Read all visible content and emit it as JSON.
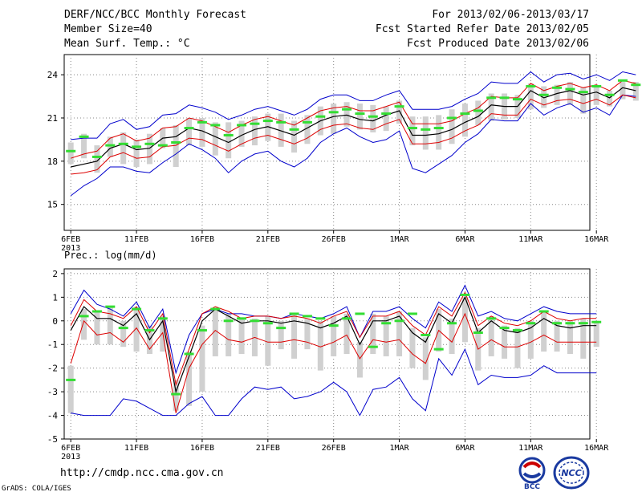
{
  "header": {
    "left": [
      "DERF/NCC/BCC Monthly Forecast",
      "Member Size=40",
      "Mean Surf. Temp.: °C"
    ],
    "right": [
      "For 2013/02/06-2013/03/17",
      "Fcst Started Refer Date 2013/02/05",
      "Fcst Produced Date 2013/02/06"
    ]
  },
  "prec_label": "Prec.: log(mm/d)",
  "footer": {
    "url": "http://cmdp.ncc.cma.gov.cn",
    "grads": "GrADS: COLA/IGES"
  },
  "logos": {
    "bcc": "BCC",
    "ncc": "NCC"
  },
  "colors": {
    "mean": "#000000",
    "spread": "#dd0000",
    "extreme": "#0000cc",
    "box": "#d0d0d0",
    "median": "#33dd33",
    "grid": "#888888"
  },
  "chart_data": [
    {
      "type": "line",
      "title": "Mean Surf. Temp.: °C",
      "ylim": [
        13.2,
        25.4
      ],
      "yticks": [
        15,
        18,
        21,
        24
      ],
      "x_tick_labels": [
        "6FEB",
        "11FEB",
        "16FEB",
        "21FEB",
        "26FEB",
        "1MAR",
        "6MAR",
        "11MAR",
        "16MAR"
      ],
      "x_tick_days": [
        1,
        6,
        11,
        16,
        21,
        26,
        31,
        36,
        41
      ],
      "year_label": "2013",
      "days": 40,
      "series": [
        {
          "name": "ensemble mean",
          "values": [
            17.6,
            17.8,
            18.0,
            18.9,
            19.2,
            18.8,
            18.9,
            19.6,
            19.7,
            20.3,
            20.1,
            19.7,
            19.3,
            19.8,
            20.2,
            20.4,
            20.1,
            19.8,
            20.3,
            20.8,
            21.1,
            21.2,
            20.9,
            20.8,
            21.2,
            21.5,
            19.8,
            19.8,
            19.9,
            20.2,
            20.7,
            21.1,
            21.9,
            21.8,
            21.8,
            22.9,
            22.4,
            22.7,
            22.9,
            22.6,
            22.8,
            22.4,
            23.1,
            22.9
          ]
        },
        {
          "name": "mean + std",
          "values": [
            18.2,
            18.5,
            18.7,
            19.6,
            19.9,
            19.4,
            19.6,
            20.3,
            20.4,
            21.0,
            20.8,
            20.4,
            20.0,
            20.5,
            20.9,
            21.1,
            20.8,
            20.5,
            21.0,
            21.5,
            21.7,
            21.8,
            21.5,
            21.5,
            21.8,
            22.1,
            20.6,
            20.6,
            20.6,
            20.8,
            21.3,
            21.7,
            22.5,
            22.4,
            22.4,
            23.4,
            22.9,
            23.2,
            23.4,
            23.1,
            23.3,
            22.9,
            23.6,
            23.4
          ]
        },
        {
          "name": "mean - std",
          "values": [
            17.1,
            17.2,
            17.4,
            18.3,
            18.6,
            18.2,
            18.3,
            19.0,
            19.1,
            19.6,
            19.5,
            19.1,
            18.7,
            19.2,
            19.6,
            19.8,
            19.5,
            19.2,
            19.6,
            20.2,
            20.5,
            20.6,
            20.3,
            20.2,
            20.6,
            20.9,
            19.2,
            19.2,
            19.3,
            19.6,
            20.1,
            20.5,
            21.3,
            21.2,
            21.2,
            22.3,
            21.9,
            22.2,
            22.3,
            22.0,
            22.3,
            21.9,
            22.6,
            22.4
          ]
        },
        {
          "name": "maximum",
          "values": [
            19.5,
            19.6,
            19.6,
            20.6,
            20.9,
            20.2,
            20.4,
            21.2,
            21.3,
            21.9,
            21.7,
            21.4,
            20.9,
            21.2,
            21.6,
            21.8,
            21.5,
            21.2,
            21.6,
            22.3,
            22.6,
            22.6,
            22.2,
            22.2,
            22.6,
            22.9,
            21.6,
            21.6,
            21.6,
            21.8,
            22.3,
            22.7,
            23.5,
            23.4,
            23.4,
            24.2,
            23.5,
            24.0,
            24.1,
            23.7,
            24.0,
            23.6,
            24.2,
            24.0
          ]
        },
        {
          "name": "minimum",
          "values": [
            15.6,
            16.3,
            16.8,
            17.6,
            17.6,
            17.3,
            17.2,
            17.9,
            18.5,
            19.2,
            18.8,
            18.2,
            17.2,
            18.0,
            18.5,
            18.7,
            18.0,
            17.6,
            18.2,
            19.3,
            19.9,
            20.3,
            19.7,
            19.3,
            19.5,
            20.1,
            17.5,
            17.2,
            17.8,
            18.4,
            19.3,
            19.9,
            20.9,
            20.8,
            20.8,
            22.0,
            21.2,
            21.7,
            22.0,
            21.4,
            21.7,
            21.2,
            22.6,
            22.5
          ]
        },
        {
          "name": "median",
          "values": [
            18.7,
            19.7,
            18.3,
            19.1,
            19.2,
            19.0,
            19.2,
            19.1,
            19.3,
            20.3,
            20.7,
            20.5,
            19.8,
            20.5,
            20.6,
            20.8,
            20.7,
            20.2,
            20.7,
            21.1,
            21.4,
            21.6,
            21.3,
            21.1,
            21.3,
            21.8,
            20.3,
            20.2,
            20.3,
            21.0,
            21.3,
            21.5,
            22.4,
            22.4,
            22.3,
            23.2,
            22.6,
            23.1,
            23.0,
            22.8,
            23.2,
            22.6,
            23.6,
            23.3
          ]
        },
        {
          "name": "box top",
          "values": [
            19.3,
            19.9,
            19.1,
            19.7,
            20.0,
            19.5,
            19.9,
            20.3,
            20.5,
            21.0,
            21.0,
            20.7,
            20.7,
            20.8,
            21.1,
            21.3,
            21.3,
            20.8,
            21.2,
            21.8,
            22.0,
            22.1,
            22.0,
            21.9,
            21.8,
            22.2,
            21.1,
            21.1,
            21.2,
            21.6,
            22.0,
            22.2,
            22.7,
            22.7,
            22.6,
            23.4,
            23.2,
            23.3,
            23.5,
            23.1,
            23.2,
            22.9,
            23.5,
            23.5
          ]
        },
        {
          "name": "box bottom",
          "values": [
            17.8,
            18.2,
            17.2,
            18.3,
            17.8,
            17.6,
            17.8,
            18.9,
            17.6,
            19.1,
            19.0,
            18.4,
            18.2,
            19.0,
            19.1,
            19.4,
            19.0,
            18.6,
            19.2,
            19.8,
            19.9,
            20.4,
            20.2,
            20.0,
            20.1,
            20.6,
            19.1,
            18.8,
            18.8,
            19.2,
            19.7,
            20.5,
            20.8,
            20.9,
            21.0,
            21.6,
            21.7,
            21.9,
            21.9,
            21.3,
            21.9,
            21.8,
            22.3,
            22.2
          ]
        }
      ]
    },
    {
      "type": "line",
      "title": "Prec.: log(mm/d)",
      "ylim": [
        -5,
        2.2
      ],
      "yticks": [
        -5,
        -4,
        -3,
        -2,
        -1,
        0,
        1,
        2
      ],
      "x_tick_labels": [
        "6FEB",
        "11FEB",
        "16FEB",
        "21FEB",
        "26FEB",
        "1MAR",
        "6MAR",
        "11MAR",
        "16MAR"
      ],
      "x_tick_days": [
        1,
        6,
        11,
        16,
        21,
        26,
        31,
        36,
        41
      ],
      "year_label": "2013",
      "days": 40,
      "series": [
        {
          "name": "ensemble mean",
          "values": [
            -0.4,
            0.6,
            0.1,
            0.1,
            -0.2,
            0.3,
            -0.8,
            0.0,
            -3.0,
            -1.5,
            0.0,
            0.5,
            0.2,
            -0.1,
            0.0,
            0.0,
            -0.1,
            0.0,
            -0.1,
            -0.3,
            -0.1,
            0.2,
            -1.0,
            0.0,
            0.0,
            0.2,
            -0.5,
            -0.9,
            0.3,
            -0.1,
            1.0,
            -0.5,
            0.0,
            -0.4,
            -0.5,
            -0.3,
            0.1,
            -0.2,
            -0.3,
            -0.2,
            -0.2
          ]
        },
        {
          "name": "mean + std",
          "values": [
            -0.2,
            0.9,
            0.4,
            0.3,
            0.1,
            0.6,
            -0.5,
            0.3,
            -2.7,
            -1.2,
            0.3,
            0.6,
            0.4,
            0.1,
            0.2,
            0.2,
            0.1,
            0.2,
            0.1,
            -0.1,
            0.2,
            0.4,
            -0.7,
            0.2,
            0.2,
            0.4,
            -0.2,
            -0.6,
            0.6,
            0.2,
            1.2,
            -0.2,
            0.2,
            -0.1,
            -0.2,
            0.0,
            0.4,
            0.1,
            0.0,
            0.1,
            0.1
          ]
        },
        {
          "name": "mean - std",
          "values": [
            -1.8,
            0.0,
            -0.6,
            -0.5,
            -0.9,
            -0.3,
            -1.2,
            -0.5,
            -3.9,
            -2.0,
            -1.0,
            -0.4,
            -0.8,
            -0.9,
            -0.7,
            -0.9,
            -0.9,
            -0.8,
            -0.9,
            -1.1,
            -0.9,
            -0.6,
            -1.6,
            -0.8,
            -0.9,
            -0.8,
            -1.4,
            -1.8,
            -0.4,
            -0.9,
            0.3,
            -1.2,
            -0.8,
            -1.1,
            -1.1,
            -0.9,
            -0.6,
            -0.9,
            -0.9,
            -0.9,
            -0.9
          ]
        },
        {
          "name": "maximum",
          "values": [
            0.3,
            1.3,
            0.7,
            0.5,
            0.2,
            0.8,
            -0.3,
            0.5,
            -2.2,
            -0.6,
            0.3,
            0.5,
            0.3,
            0.3,
            0.2,
            0.2,
            0.1,
            0.3,
            0.2,
            0.1,
            0.3,
            0.6,
            -0.7,
            0.4,
            0.4,
            0.6,
            0.1,
            -0.3,
            0.8,
            0.4,
            1.5,
            0.2,
            0.4,
            0.1,
            0.0,
            0.3,
            0.6,
            0.4,
            0.3,
            0.3,
            0.3
          ]
        },
        {
          "name": "minimum",
          "values": [
            -3.9,
            -4.0,
            -4.0,
            -4.0,
            -3.3,
            -3.4,
            -3.7,
            -4.0,
            -4.0,
            -3.5,
            -3.2,
            -4.0,
            -4.0,
            -3.3,
            -2.8,
            -2.9,
            -2.8,
            -3.3,
            -3.2,
            -3.0,
            -2.6,
            -3.0,
            -4.0,
            -2.9,
            -2.8,
            -2.4,
            -3.3,
            -3.8,
            -1.6,
            -2.3,
            -1.2,
            -2.7,
            -2.3,
            -2.4,
            -2.4,
            -2.3,
            -1.9,
            -2.2,
            -2.2,
            -2.2,
            -2.2
          ]
        },
        {
          "name": "median",
          "values": [
            -2.5,
            0.2,
            0.4,
            0.6,
            -0.3,
            0.5,
            -0.4,
            0.1,
            -3.1,
            -1.4,
            -0.4,
            0.5,
            0.0,
            0.1,
            0.0,
            -0.1,
            -0.3,
            0.3,
            0.2,
            0.1,
            -0.2,
            0.1,
            0.3,
            -1.1,
            -0.1,
            0.0,
            0.3,
            -0.6,
            -1.2,
            -0.1,
            1.1,
            -0.5,
            0.1,
            -0.3,
            -0.4,
            -0.1,
            0.4,
            -0.1,
            -0.1,
            -0.1,
            -0.05
          ]
        },
        {
          "name": "box top",
          "values": [
            -1.9,
            0.5,
            0.4,
            0.6,
            0.0,
            0.6,
            -0.2,
            0.2,
            -2.5,
            -1.3,
            -0.2,
            0.5,
            0.3,
            0.1,
            0.1,
            0.2,
            0.0,
            0.3,
            0.1,
            0.0,
            0.2,
            0.3,
            -0.9,
            0.3,
            0.2,
            0.4,
            -0.3,
            -0.7,
            0.5,
            0.1,
            1.0,
            -0.3,
            0.2,
            -0.2,
            -0.3,
            0.0,
            0.4,
            0.0,
            0.0,
            0.1,
            0.0
          ]
        },
        {
          "name": "box bottom",
          "values": [
            -3.9,
            -0.8,
            -1.0,
            -1.0,
            -1.1,
            -1.3,
            -1.4,
            -1.3,
            -3.8,
            -3.6,
            -3.0,
            -1.5,
            -1.5,
            -1.4,
            -1.5,
            -1.9,
            -1.2,
            -1.6,
            -1.2,
            -2.1,
            -1.5,
            -1.4,
            -2.4,
            -1.4,
            -1.5,
            -1.5,
            -2.0,
            -2.5,
            -1.3,
            -1.4,
            -0.9,
            -2.1,
            -1.5,
            -1.6,
            -2.0,
            -1.6,
            -1.3,
            -1.3,
            -1.4,
            -1.6,
            -1.1
          ]
        }
      ]
    }
  ]
}
